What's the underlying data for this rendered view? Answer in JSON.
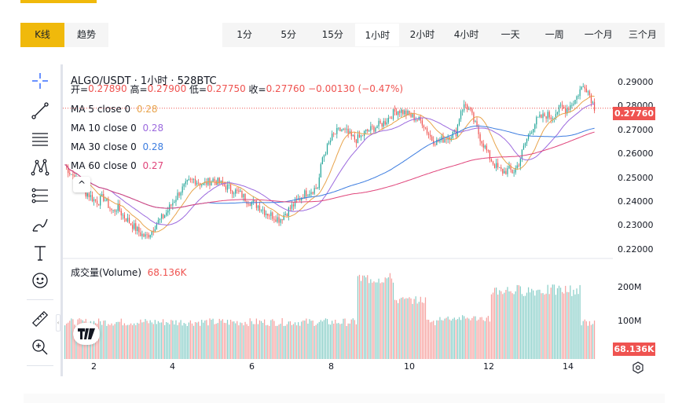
{
  "chart_tabs": [
    {
      "label": "K线",
      "active": true
    },
    {
      "label": "趋势",
      "active": false
    }
  ],
  "intervals": [
    {
      "label": "1分",
      "active": false
    },
    {
      "label": "5分",
      "active": false
    },
    {
      "label": "15分",
      "active": false
    },
    {
      "label": "1小时",
      "active": true
    },
    {
      "label": "2小时",
      "active": false
    },
    {
      "label": "4小时",
      "active": false
    },
    {
      "label": "一天",
      "active": false
    },
    {
      "label": "一周",
      "active": false
    },
    {
      "label": "一个月",
      "active": false
    },
    {
      "label": "三个月",
      "active": false
    }
  ],
  "legend": {
    "symbol": "ALGO/USDT · 1小时 · 528BTC",
    "open_label": "开=",
    "open": "0.27890",
    "high_label": "高=",
    "high": "0.27900",
    "low_label": "低=",
    "low": "0.27750",
    "close_label": "收=",
    "close": "0.27760",
    "change": "−0.00130 (−0.47%)",
    "ma": [
      {
        "label": "MA 5 close 0",
        "value": "0.28",
        "color": "#e8a44c"
      },
      {
        "label": "MA 10 close 0",
        "value": "0.28",
        "color": "#9c6ade"
      },
      {
        "label": "MA 30 close 0",
        "value": "0.28",
        "color": "#3d7de0"
      },
      {
        "label": "MA 60 close 0",
        "value": "0.27",
        "color": "#e0457b"
      }
    ]
  },
  "volume_legend": {
    "label": "成交量(Volume)",
    "value": "68.136K"
  },
  "price_axis": [
    "0.29000",
    "0.28000",
    "0.27000",
    "0.26000",
    "0.25000",
    "0.24000",
    "0.23000",
    "0.22000"
  ],
  "last_price": "0.27760",
  "volume_axis": [
    "200M",
    "100M"
  ],
  "last_volume": "68.136K",
  "time_axis": [
    "2",
    "4",
    "6",
    "8",
    "10",
    "12",
    "14"
  ],
  "colors": {
    "up": "#26a69a",
    "down": "#ef5350",
    "accent": "#f0b90b"
  },
  "chart_data": {
    "type": "candlestick",
    "ylim": [
      0.218,
      0.292
    ],
    "close_series": [
      0.255,
      0.252,
      0.25,
      0.246,
      0.244,
      0.243,
      0.241,
      0.24,
      0.242,
      0.239,
      0.236,
      0.238,
      0.235,
      0.233,
      0.231,
      0.229,
      0.227,
      0.226,
      0.228,
      0.231,
      0.233,
      0.235,
      0.238,
      0.241,
      0.244,
      0.246,
      0.248,
      0.249,
      0.248,
      0.247,
      0.248,
      0.249,
      0.248,
      0.247,
      0.246,
      0.245,
      0.244,
      0.243,
      0.241,
      0.24,
      0.239,
      0.238,
      0.236,
      0.235,
      0.234,
      0.233,
      0.235,
      0.237,
      0.239,
      0.241,
      0.243,
      0.244,
      0.245,
      0.246,
      0.258,
      0.262,
      0.266,
      0.268,
      0.269,
      0.268,
      0.266,
      0.265,
      0.266,
      0.268,
      0.269,
      0.27,
      0.271,
      0.272,
      0.274,
      0.276,
      0.277,
      0.276,
      0.275,
      0.274,
      0.273,
      0.272,
      0.268,
      0.265,
      0.264,
      0.265,
      0.266,
      0.267,
      0.268,
      0.277,
      0.279,
      0.276,
      0.271,
      0.266,
      0.262,
      0.258,
      0.255,
      0.253,
      0.252,
      0.253,
      0.252,
      0.255,
      0.261,
      0.266,
      0.27,
      0.273,
      0.274,
      0.275,
      0.274,
      0.276,
      0.278,
      0.277,
      0.279,
      0.281,
      0.285,
      0.287,
      0.283,
      0.278
    ]
  }
}
